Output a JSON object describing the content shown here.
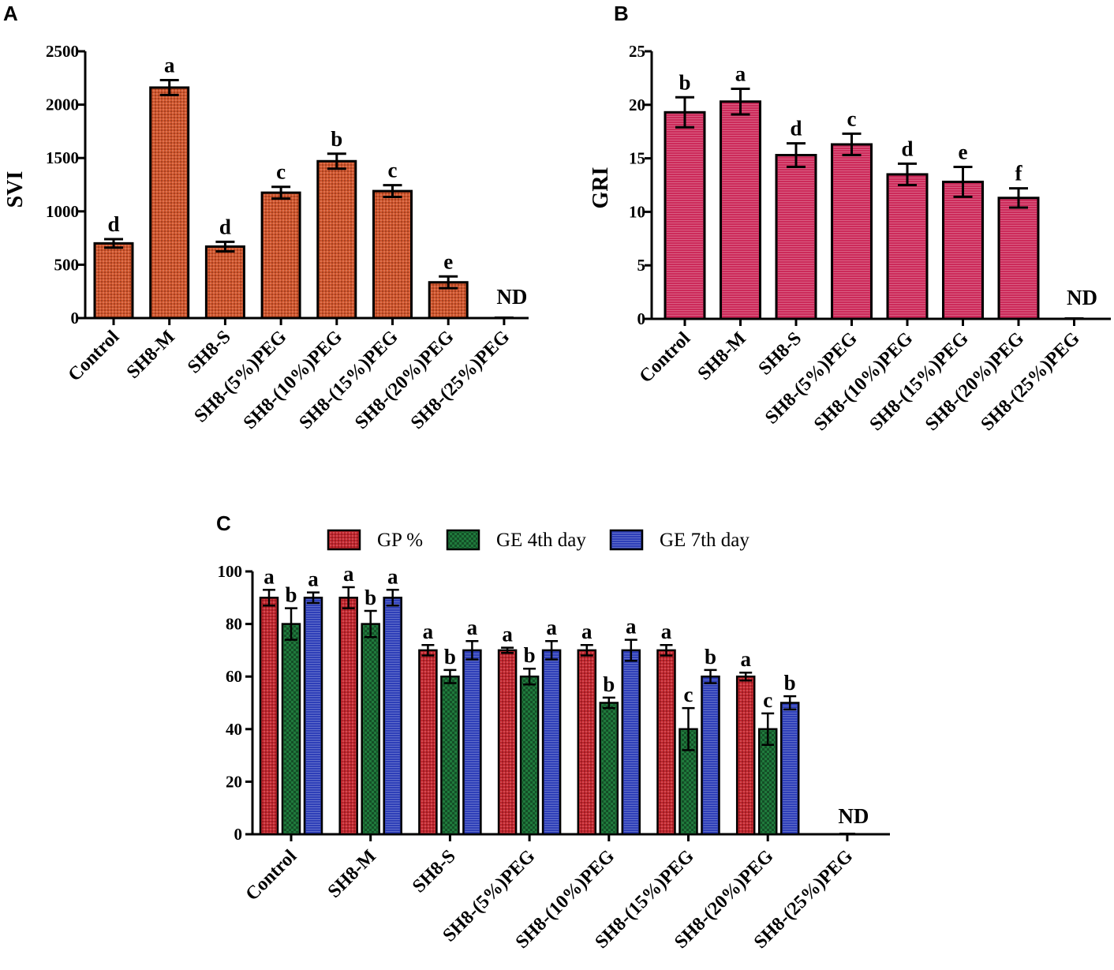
{
  "chart_data": [
    {
      "panel": "A",
      "type": "bar",
      "ylabel": "SVI",
      "ylim": [
        0,
        2500
      ],
      "yticks": [
        "0",
        "500",
        "1000",
        "1500",
        "2000",
        "2500"
      ],
      "categories": [
        "Control",
        "SH8-M",
        "SH8-S",
        "SH8-(5%)PEG",
        "SH8-(10%)PEG",
        "SH8-(15%)PEG",
        "SH8-(20%)PEG",
        "SH8-(25%)PEG"
      ],
      "values": [
        700,
        2160,
        670,
        1175,
        1470,
        1190,
        335,
        0
      ],
      "errors": [
        40,
        70,
        45,
        55,
        70,
        55,
        55,
        0
      ],
      "letters": [
        "d",
        "a",
        "d",
        "c",
        "b",
        "c",
        "e",
        "ND"
      ],
      "color": "#d2552c"
    },
    {
      "panel": "B",
      "type": "bar",
      "ylabel": "GRI",
      "ylim": [
        0,
        25
      ],
      "yticks": [
        "0",
        "5",
        "10",
        "15",
        "20",
        "25"
      ],
      "categories": [
        "Control",
        "SH8-M",
        "SH8-S",
        "SH8-(5%)PEG",
        "SH8-(10%)PEG",
        "SH8-(15%)PEG",
        "SH8-(20%)PEG",
        "SH8-(25%)PEG"
      ],
      "values": [
        19.3,
        20.3,
        15.3,
        16.3,
        13.5,
        12.8,
        11.3,
        0
      ],
      "errors": [
        1.4,
        1.2,
        1.1,
        1.0,
        1.0,
        1.4,
        0.9,
        0
      ],
      "letters": [
        "b",
        "a",
        "d",
        "c",
        "d",
        "e",
        "f",
        "ND"
      ],
      "color": "#cc2a5a"
    },
    {
      "panel": "C",
      "type": "bar",
      "ylabel": "",
      "ylim": [
        0,
        100
      ],
      "yticks": [
        "0",
        "20",
        "40",
        "60",
        "80",
        "100"
      ],
      "categories": [
        "Control",
        "SH8-M",
        "SH8-S",
        "SH8-(5%)PEG",
        "SH8-(10%)PEG",
        "SH8-(15%)PEG",
        "SH8-(20%)PEG",
        "SH8-(25%)PEG"
      ],
      "series": [
        {
          "name": "GP %",
          "color": "#c4262e",
          "values": [
            90,
            90,
            70,
            70,
            70,
            70,
            60,
            0
          ],
          "errors": [
            3,
            4,
            2,
            1,
            2,
            2,
            1.5,
            0
          ],
          "letters": [
            "a",
            "a",
            "a",
            "a",
            "a",
            "a",
            "a",
            ""
          ]
        },
        {
          "name": "GE 4th day",
          "color": "#1f7a3c",
          "values": [
            80,
            80,
            60,
            60,
            50,
            40,
            40,
            0
          ],
          "errors": [
            6,
            5,
            2.5,
            3,
            2,
            8,
            6,
            0
          ],
          "letters": [
            "b",
            "b",
            "b",
            "b",
            "b",
            "c",
            "c",
            ""
          ]
        },
        {
          "name": "GE 7th day",
          "color": "#2e3fb8",
          "values": [
            90,
            90,
            70,
            70,
            70,
            60,
            50,
            0
          ],
          "errors": [
            2,
            3,
            3.5,
            3.5,
            4,
            2.5,
            2.5,
            0
          ],
          "letters": [
            "a",
            "a",
            "a",
            "a",
            "a",
            "b",
            "b",
            ""
          ]
        }
      ],
      "nd_label": "ND",
      "legend": "top"
    }
  ]
}
